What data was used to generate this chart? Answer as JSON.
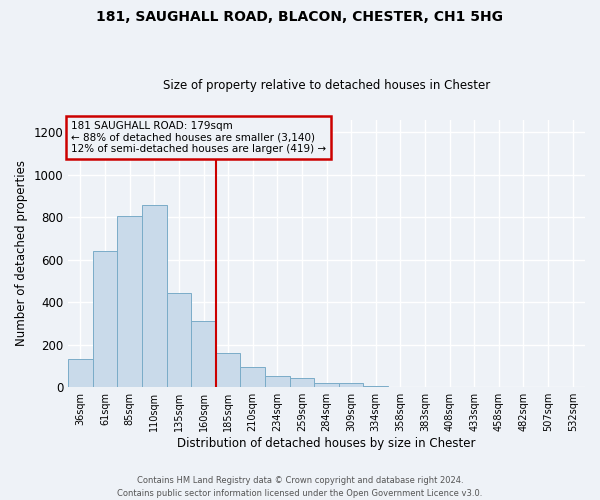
{
  "title1": "181, SAUGHALL ROAD, BLACON, CHESTER, CH1 5HG",
  "title2": "Size of property relative to detached houses in Chester",
  "xlabel": "Distribution of detached houses by size in Chester",
  "ylabel": "Number of detached properties",
  "bar_color": "#c9daea",
  "bar_edge_color": "#7aacc8",
  "bin_labels": [
    "36sqm",
    "61sqm",
    "85sqm",
    "110sqm",
    "135sqm",
    "160sqm",
    "185sqm",
    "210sqm",
    "234sqm",
    "259sqm",
    "284sqm",
    "309sqm",
    "334sqm",
    "358sqm",
    "383sqm",
    "408sqm",
    "433sqm",
    "458sqm",
    "482sqm",
    "507sqm",
    "532sqm"
  ],
  "bar_values": [
    135,
    640,
    805,
    860,
    445,
    310,
    160,
    95,
    55,
    42,
    18,
    20,
    8,
    3,
    0,
    0,
    0,
    0,
    3,
    0,
    0
  ],
  "vline_color": "#cc0000",
  "annotation_title": "181 SAUGHALL ROAD: 179sqm",
  "annotation_line1": "← 88% of detached houses are smaller (3,140)",
  "annotation_line2": "12% of semi-detached houses are larger (419) →",
  "annotation_box_edge_color": "#cc0000",
  "ylim": [
    0,
    1260
  ],
  "yticks": [
    0,
    200,
    400,
    600,
    800,
    1000,
    1200
  ],
  "footnote1": "Contains HM Land Registry data © Crown copyright and database right 2024.",
  "footnote2": "Contains public sector information licensed under the Open Government Licence v3.0.",
  "background_color": "#eef2f7",
  "grid_color": "#ffffff"
}
